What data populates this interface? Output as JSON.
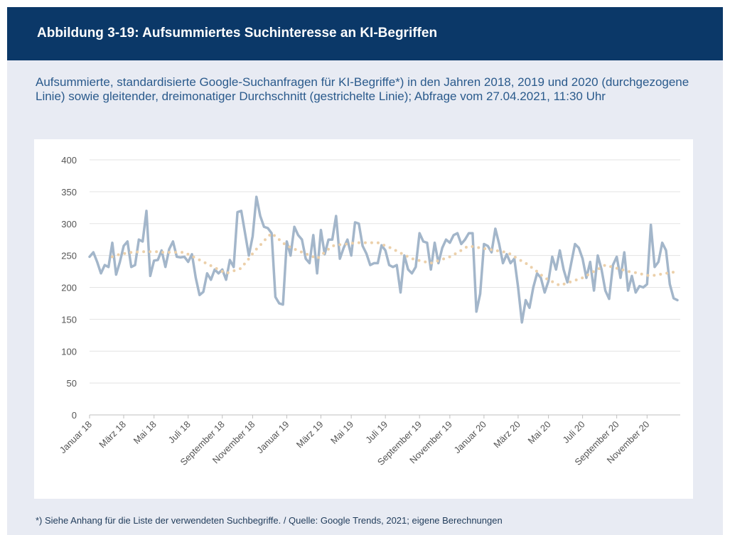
{
  "title": "Abbildung 3-19: Aufsummiertes Suchinteresse an KI-Begriffen",
  "subtitle": "Aufsummierte, standardisierte Google-Suchanfragen für KI-Begriffe*) in den Jahren 2018, 2019 und 2020 (durchgezogene Linie) sowie gleitender, dreimonatiger Durchschnitt (gestrichelte Linie); Abfrage vom 27.04.2021, 11:30 Uhr",
  "footnote": "*) Siehe Anhang für die Liste der verwendeten Suchbegriffe. / Quelle: Google Trends, 2021; eigene Berechnungen",
  "chart_data": {
    "type": "line",
    "categories": [
      "Januar 18",
      null,
      null,
      null,
      null,
      null,
      null,
      null,
      null,
      "März 18",
      null,
      null,
      null,
      null,
      null,
      null,
      null,
      "Mai 18",
      null,
      null,
      null,
      null,
      null,
      null,
      null,
      null,
      "Juli 18",
      null,
      null,
      null,
      null,
      null,
      null,
      null,
      null,
      "September 18",
      null,
      null,
      null,
      null,
      null,
      null,
      null,
      "November 18",
      null,
      null,
      null,
      null,
      null,
      null,
      null,
      null,
      "Januar 19",
      null,
      null,
      null,
      null,
      null,
      null,
      null,
      null,
      "März 19",
      null,
      null,
      null,
      null,
      null,
      null,
      null,
      "Mai 19",
      null,
      null,
      null,
      null,
      null,
      null,
      null,
      null,
      "Juli 19",
      null,
      null,
      null,
      null,
      null,
      null,
      null,
      null,
      "September 19",
      null,
      null,
      null,
      null,
      null,
      null,
      null,
      "November 19",
      null,
      null,
      null,
      null,
      null,
      null,
      null,
      null,
      "Januar 20",
      null,
      null,
      null,
      null,
      null,
      null,
      null,
      null,
      "März 20",
      null,
      null,
      null,
      null,
      null,
      null,
      null,
      "Mai 20",
      null,
      null,
      null,
      null,
      null,
      null,
      null,
      null,
      "Juli 20",
      null,
      null,
      null,
      null,
      null,
      null,
      null,
      null,
      "September 20",
      null,
      null,
      null,
      null,
      null,
      null,
      null,
      "November 20",
      null,
      null,
      null,
      null,
      null,
      null,
      null,
      null
    ],
    "series": [
      {
        "color": "#a3b6ca",
        "style": "solid",
        "values": [
          248,
          255,
          240,
          222,
          235,
          232,
          270,
          220,
          240,
          265,
          272,
          232,
          235,
          275,
          272,
          320,
          218,
          242,
          243,
          258,
          232,
          260,
          272,
          248,
          247,
          248,
          240,
          252,
          215,
          188,
          193,
          222,
          212,
          228,
          222,
          228,
          212,
          243,
          232,
          318,
          320,
          285,
          250,
          280,
          342,
          312,
          295,
          293,
          285,
          185,
          175,
          173,
          272,
          250,
          295,
          282,
          275,
          245,
          238,
          282,
          222,
          290,
          252,
          275,
          275,
          312,
          245,
          262,
          275,
          250,
          302,
          300,
          265,
          253,
          235,
          238,
          238,
          266,
          258,
          235,
          232,
          235,
          192,
          250,
          228,
          222,
          232,
          285,
          272,
          270,
          228,
          270,
          238,
          262,
          275,
          270,
          282,
          285,
          268,
          275,
          285,
          285,
          162,
          190,
          268,
          265,
          255,
          292,
          268,
          238,
          252,
          238,
          245,
          200,
          145,
          180,
          168,
          200,
          222,
          215,
          192,
          210,
          248,
          228,
          258,
          228,
          208,
          238,
          268,
          262,
          245,
          215,
          240,
          195,
          250,
          228,
          195,
          182,
          235,
          248,
          215,
          255,
          195,
          218,
          192,
          202,
          200,
          205,
          298,
          232,
          240,
          270,
          258,
          205,
          183,
          180
        ]
      },
      {
        "color": "#ecd0aa",
        "style": "dotted",
        "values": [
          null,
          null,
          null,
          null,
          null,
          null,
          248,
          250,
          252,
          253,
          254,
          255,
          255,
          256,
          256,
          256,
          256,
          256,
          256,
          255,
          255,
          255,
          255,
          255,
          255,
          255,
          252,
          249,
          246,
          243,
          240,
          237,
          234,
          231,
          228,
          225,
          222,
          224,
          226,
          228,
          230,
          238,
          245,
          253,
          260,
          266,
          273,
          279,
          285,
          280,
          275,
          270,
          265,
          263,
          260,
          258,
          255,
          253,
          250,
          248,
          245,
          250,
          255,
          260,
          265,
          266,
          267,
          268,
          268,
          269,
          270,
          270,
          270,
          270,
          270,
          270,
          270,
          268,
          265,
          263,
          260,
          257,
          254,
          251,
          248,
          245,
          244,
          242,
          241,
          239,
          238,
          240,
          242,
          244,
          246,
          248,
          251,
          255,
          258,
          262,
          265,
          264,
          263,
          262,
          261,
          260,
          259,
          258,
          257,
          256,
          255,
          252,
          248,
          245,
          241,
          238,
          234,
          229,
          225,
          220,
          215,
          212,
          209,
          206,
          203,
          205,
          207,
          209,
          211,
          213,
          215,
          218,
          222,
          225,
          228,
          232,
          235,
          233,
          232,
          230,
          228,
          227,
          225,
          224,
          223,
          222,
          220,
          219,
          218,
          219,
          220,
          221,
          222,
          223,
          224,
          225
        ]
      }
    ],
    "ylim": [
      0,
      400
    ],
    "yticks": [
      0,
      50,
      100,
      150,
      200,
      250,
      300,
      350,
      400
    ],
    "grid": true
  }
}
